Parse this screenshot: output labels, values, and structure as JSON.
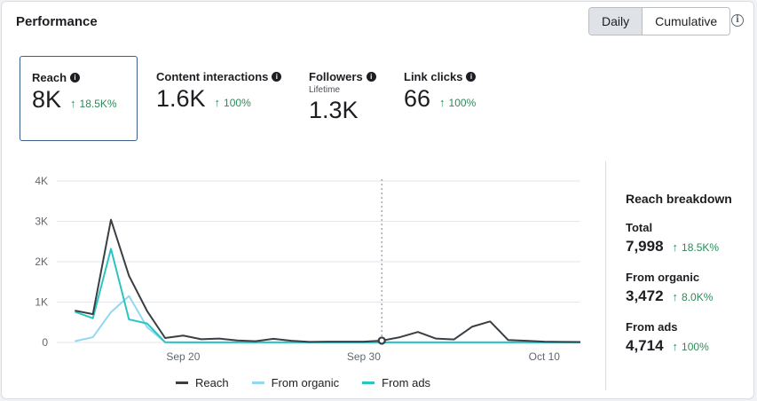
{
  "header": {
    "title": "Performance",
    "toggle": [
      {
        "label": "Daily",
        "active": true
      },
      {
        "label": "Cumulative",
        "active": false
      }
    ],
    "info_glyph": "i"
  },
  "metrics": [
    {
      "label": "Reach",
      "sublabel": "",
      "value": "8K",
      "trend": "18.5K%",
      "selected": true
    },
    {
      "label": "Content interactions",
      "sublabel": "",
      "value": "1.6K",
      "trend": "100%"
    },
    {
      "label": "Followers",
      "sublabel": "Lifetime",
      "value": "1.3K",
      "trend": ""
    },
    {
      "label": "Link clicks",
      "sublabel": "",
      "value": "66",
      "trend": "100%"
    }
  ],
  "icons": {
    "info": "info-icon",
    "trend_up": "arrow-up-icon",
    "trend_up_glyph": "↑",
    "info_glyph": "i"
  },
  "breakdown": {
    "title": "Reach breakdown",
    "items": [
      {
        "label": "Total",
        "value": "7,998",
        "trend": "18.5K%"
      },
      {
        "label": "From organic",
        "value": "3,472",
        "trend": "8.0K%"
      },
      {
        "label": "From ads",
        "value": "4,714",
        "trend": "100%"
      }
    ]
  },
  "colors": {
    "reach": "#3a3f44",
    "organic": "#92d8f0",
    "ads": "#2bc4c4",
    "trend": "#2e8a5a",
    "accent": "#3b5f8a"
  },
  "chart_data": {
    "type": "line",
    "x": [
      14,
      15,
      16,
      17,
      18,
      19,
      20,
      21,
      22,
      23,
      24,
      25,
      26,
      27,
      28,
      29,
      30,
      31,
      32,
      33,
      34,
      35,
      36,
      37,
      38,
      39,
      40,
      41,
      42
    ],
    "x_ticks": [
      {
        "x": 20,
        "label": "Sep 20"
      },
      {
        "x": 30,
        "label": "Sep 30"
      },
      {
        "x": 40,
        "label": "Oct 10"
      }
    ],
    "y_ticks": [
      {
        "y": 0,
        "label": "0"
      },
      {
        "y": 1000,
        "label": "1K"
      },
      {
        "y": 2000,
        "label": "2K"
      },
      {
        "y": 3000,
        "label": "3K"
      },
      {
        "y": 4000,
        "label": "4K"
      }
    ],
    "ylim": [
      0,
      4000
    ],
    "marker_x": 31,
    "series": [
      {
        "name": "Reach",
        "values": [
          790,
          700,
          3040,
          1650,
          780,
          110,
          170,
          80,
          95,
          50,
          30,
          90,
          40,
          15,
          20,
          20,
          20,
          45,
          130,
          260,
          95,
          75,
          390,
          520,
          60,
          40,
          20,
          15,
          10
        ]
      },
      {
        "name": "From organic",
        "values": [
          30,
          130,
          750,
          1150,
          380,
          5,
          3,
          3,
          3,
          3,
          3,
          3,
          3,
          3,
          3,
          3,
          3,
          3,
          3,
          3,
          3,
          3,
          3,
          3,
          3,
          3,
          3,
          3,
          3
        ]
      },
      {
        "name": "From ads",
        "values": [
          760,
          600,
          2320,
          570,
          470,
          5,
          3,
          3,
          3,
          3,
          3,
          3,
          3,
          3,
          3,
          3,
          3,
          3,
          3,
          3,
          3,
          3,
          3,
          3,
          3,
          3,
          3,
          3,
          3
        ]
      }
    ]
  }
}
